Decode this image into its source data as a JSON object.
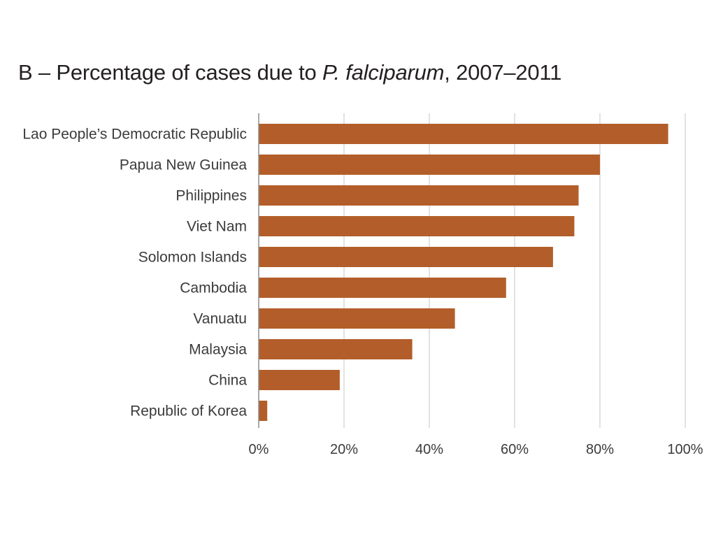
{
  "chart_data": {
    "type": "bar",
    "orientation": "horizontal",
    "title": {
      "prefix": "B – Percentage of cases due to ",
      "italic": "P. falciparum",
      "suffix": ", 2007–2011"
    },
    "categories": [
      "Lao People’s Democratic Republic",
      "Papua New Guinea",
      "Philippines",
      "Viet Nam",
      "Solomon Islands",
      "Cambodia",
      "Vanuatu",
      "Malaysia",
      "China",
      "Republic of Korea"
    ],
    "values": [
      96,
      80,
      75,
      74,
      69,
      58,
      46,
      36,
      19,
      2
    ],
    "xlim": [
      0,
      100
    ],
    "x_ticks": [
      0,
      20,
      40,
      60,
      80,
      100
    ],
    "x_tick_labels": [
      "0%",
      "20%",
      "40%",
      "60%",
      "80%",
      "100%"
    ],
    "grid": true,
    "bar_color": "#b35e2a",
    "grid_color": "#d9d9d9",
    "axis_color": "#8c8c8c"
  }
}
